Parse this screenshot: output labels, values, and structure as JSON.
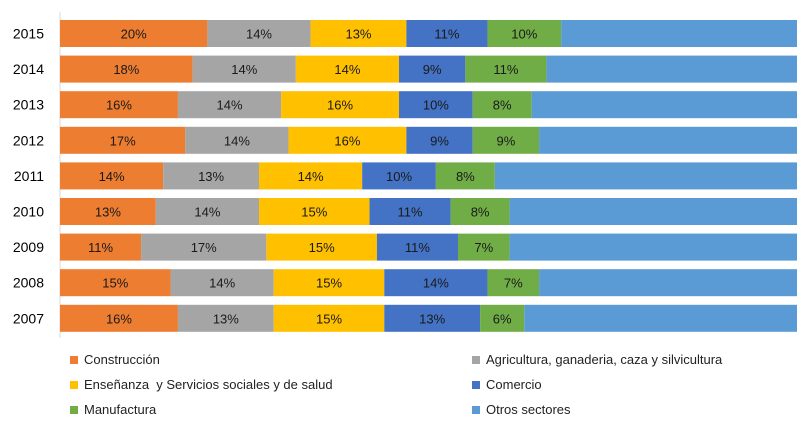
{
  "chart_data": {
    "type": "bar",
    "orientation": "horizontal",
    "stacked": true,
    "normalized": true,
    "title": "",
    "xlabel": "",
    "ylabel": "",
    "xlim": [
      0,
      100
    ],
    "grid": false,
    "legend_position": "bottom",
    "categories": [
      "2015",
      "2014",
      "2013",
      "2012",
      "2011",
      "2010",
      "2009",
      "2008",
      "2007"
    ],
    "series": [
      {
        "name": "Construcción",
        "color": "#ED7D31",
        "values": [
          20,
          18,
          16,
          17,
          14,
          13,
          11,
          15,
          16
        ],
        "labels": [
          "20%",
          "18%",
          "16%",
          "17%",
          "14%",
          "13%",
          "11%",
          "15%",
          "16%"
        ]
      },
      {
        "name": "Agricultura, ganaderia, caza y silvicultura",
        "color": "#A5A5A5",
        "values": [
          14,
          14,
          14,
          14,
          13,
          14,
          17,
          14,
          13
        ],
        "labels": [
          "14%",
          "14%",
          "14%",
          "14%",
          "13%",
          "14%",
          "17%",
          "14%",
          "13%"
        ]
      },
      {
        "name": "Enseñanza  y Servicios sociales y de salud",
        "color": "#FFC000",
        "values": [
          13,
          14,
          16,
          16,
          14,
          15,
          15,
          15,
          15
        ],
        "labels": [
          "13%",
          "14%",
          "16%",
          "16%",
          "14%",
          "15%",
          "15%",
          "15%",
          "15%"
        ]
      },
      {
        "name": "Comercio",
        "color": "#4472C4",
        "values": [
          11,
          9,
          10,
          9,
          10,
          11,
          11,
          14,
          13
        ],
        "labels": [
          "11%",
          "9%",
          "10%",
          "9%",
          "10%",
          "11%",
          "11%",
          "14%",
          "13%"
        ]
      },
      {
        "name": "Manufactura",
        "color": "#70AD47",
        "values": [
          10,
          11,
          8,
          9,
          8,
          8,
          7,
          7,
          6
        ],
        "labels": [
          "10%",
          "11%",
          "8%",
          "9%",
          "8%",
          "8%",
          "7%",
          "7%",
          "6%"
        ]
      },
      {
        "name": "Otros sectores",
        "color": "#5B9BD5",
        "values": [
          32,
          34,
          36,
          35,
          41,
          39,
          39,
          35,
          37
        ],
        "labels": [
          "",
          "",
          "",
          "",
          "",
          "",
          "",
          "",
          ""
        ]
      }
    ]
  },
  "legend": {
    "order": [
      0,
      1,
      2,
      3,
      4,
      5
    ]
  }
}
